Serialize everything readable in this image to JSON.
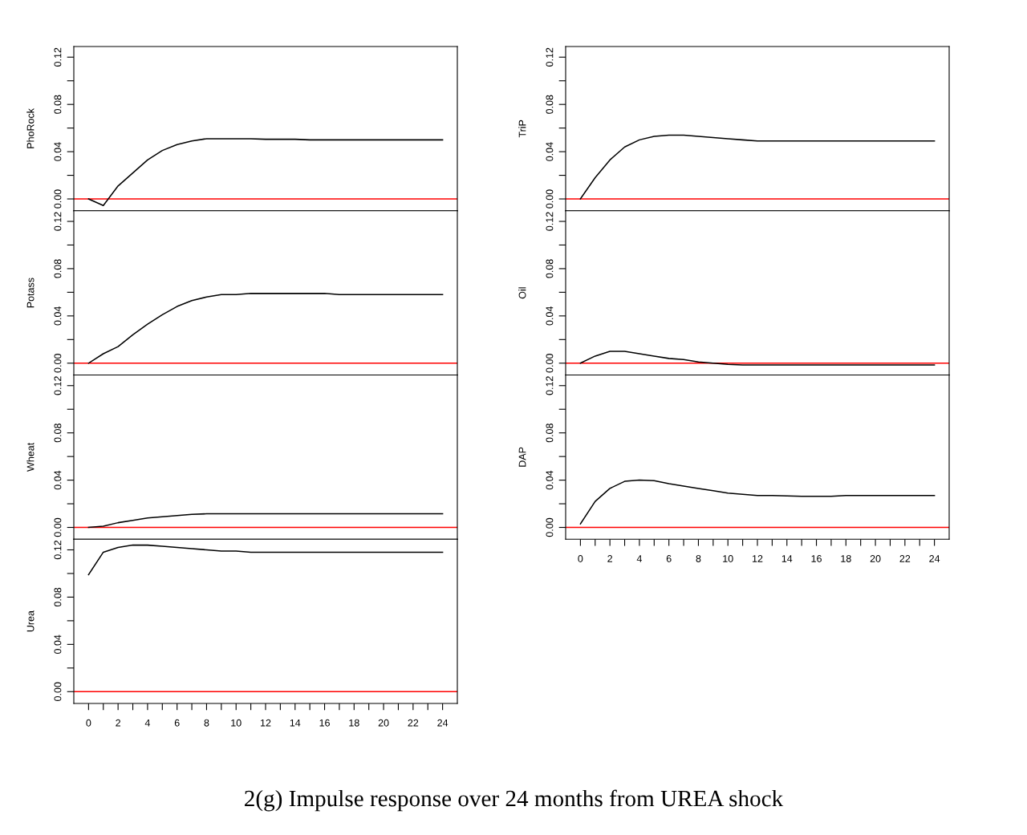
{
  "chart_data": [
    {
      "type": "line",
      "ylabel": "PhoRock",
      "annotations": [
        "2(g) Impulse response over 24 months from UREA shock"
      ],
      "xlim": [
        -1,
        25
      ],
      "ylim": [
        -0.01,
        0.129
      ],
      "yticks": [
        {
          "value": 0,
          "label": "0.00"
        },
        {
          "value": 0.02,
          "label": null
        },
        0.04,
        {
          "value": 0.06,
          "label": null
        },
        0.08,
        {
          "value": 0.1,
          "label": null
        },
        0.12
      ],
      "tick_labels": "y",
      "ref_lines": [
        {
          "axis": "y",
          "value": 0,
          "color": "#ff0000"
        }
      ],
      "series": [
        {
          "color": "#000000",
          "x": [
            0,
            1,
            2,
            3,
            4,
            5,
            6,
            7,
            8,
            9,
            10,
            11,
            12,
            13,
            14,
            15,
            16,
            17,
            18,
            19,
            20,
            21,
            22,
            23,
            24
          ],
          "values": [
            0,
            -0.0056,
            0.011,
            0.022,
            0.033,
            0.041,
            0.046,
            0.049,
            0.051,
            0.051,
            0.051,
            0.051,
            0.0505,
            0.0505,
            0.0505,
            0.05,
            0.05,
            0.05,
            0.05,
            0.05,
            0.05,
            0.05,
            0.05,
            0.05,
            0.05
          ]
        }
      ]
    },
    {
      "type": "line",
      "ylabel": "Potass",
      "xlim": [
        -1,
        25
      ],
      "ylim": [
        -0.01,
        0.129
      ],
      "yticks": [
        {
          "value": 0,
          "label": "0.00"
        },
        {
          "value": 0.02,
          "label": null
        },
        0.04,
        {
          "value": 0.06,
          "label": null
        },
        0.08,
        {
          "value": 0.1,
          "label": null
        },
        0.12
      ],
      "tick_labels": "y",
      "ref_lines": [
        {
          "axis": "y",
          "value": 0,
          "color": "#ff0000"
        }
      ],
      "series": [
        {
          "color": "#000000",
          "x": [
            0,
            1,
            2,
            3,
            4,
            5,
            6,
            7,
            8,
            9,
            10,
            11,
            12,
            13,
            14,
            15,
            16,
            17,
            18,
            19,
            20,
            21,
            22,
            23,
            24
          ],
          "values": [
            0,
            0.008,
            0.014,
            0.024,
            0.033,
            0.041,
            0.048,
            0.053,
            0.056,
            0.058,
            0.058,
            0.059,
            0.059,
            0.059,
            0.059,
            0.059,
            0.059,
            0.058,
            0.058,
            0.058,
            0.058,
            0.058,
            0.058,
            0.058,
            0.058
          ]
        }
      ]
    },
    {
      "type": "line",
      "ylabel": "Wheat",
      "xlim": [
        -1,
        25
      ],
      "ylim": [
        -0.01,
        0.129
      ],
      "yticks": [
        {
          "value": 0,
          "label": "0.00"
        },
        {
          "value": 0.02,
          "label": null
        },
        0.04,
        {
          "value": 0.06,
          "label": null
        },
        0.08,
        {
          "value": 0.1,
          "label": null
        },
        0.12
      ],
      "tick_labels": "y",
      "ref_lines": [
        {
          "axis": "y",
          "value": 0,
          "color": "#ff0000"
        }
      ],
      "series": [
        {
          "color": "#000000",
          "x": [
            0,
            1,
            2,
            3,
            4,
            5,
            6,
            7,
            8,
            9,
            10,
            11,
            12,
            13,
            14,
            15,
            16,
            17,
            18,
            19,
            20,
            21,
            22,
            23,
            24
          ],
          "values": [
            0,
            0.001,
            0.004,
            0.006,
            0.008,
            0.009,
            0.01,
            0.011,
            0.0115,
            0.0115,
            0.0115,
            0.0115,
            0.0115,
            0.0115,
            0.0115,
            0.0115,
            0.0115,
            0.0115,
            0.0115,
            0.0115,
            0.0115,
            0.0115,
            0.0115,
            0.0115,
            0.0115
          ]
        }
      ]
    },
    {
      "type": "line",
      "ylabel": "Urea",
      "xlim": [
        -1,
        25
      ],
      "ylim": [
        -0.01,
        0.129
      ],
      "yticks": [
        {
          "value": 0,
          "label": "0.00"
        },
        {
          "value": 0.02,
          "label": null
        },
        0.04,
        {
          "value": 0.06,
          "label": null
        },
        0.08,
        {
          "value": 0.1,
          "label": null
        },
        0.12
      ],
      "xticks": [
        0,
        {
          "value": 1,
          "label": null
        },
        2,
        {
          "value": 3,
          "label": null
        },
        4,
        {
          "value": 5,
          "label": null
        },
        6,
        {
          "value": 7,
          "label": null
        },
        8,
        {
          "value": 9,
          "label": null
        },
        10,
        {
          "value": 11,
          "label": null
        },
        12,
        {
          "value": 13,
          "label": null
        },
        14,
        {
          "value": 15,
          "label": null
        },
        16,
        {
          "value": 17,
          "label": null
        },
        18,
        {
          "value": 19,
          "label": null
        },
        20,
        {
          "value": 21,
          "label": null
        },
        22,
        {
          "value": 23,
          "label": null
        },
        24
      ],
      "ref_lines": [
        {
          "axis": "y",
          "value": 0,
          "color": "#ff0000"
        }
      ],
      "series": [
        {
          "color": "#000000",
          "x": [
            0,
            1,
            2,
            3,
            4,
            5,
            6,
            7,
            8,
            9,
            10,
            11,
            12,
            13,
            14,
            15,
            16,
            17,
            18,
            19,
            20,
            21,
            22,
            23,
            24
          ],
          "values": [
            0.099,
            0.118,
            0.122,
            0.124,
            0.124,
            0.123,
            0.122,
            0.121,
            0.12,
            0.119,
            0.119,
            0.118,
            0.118,
            0.118,
            0.118,
            0.118,
            0.118,
            0.118,
            0.118,
            0.118,
            0.118,
            0.118,
            0.118,
            0.118,
            0.118
          ]
        }
      ]
    },
    {
      "type": "line",
      "ylabel": "TriP",
      "xlim": [
        -1,
        25
      ],
      "ylim": [
        -0.01,
        0.129
      ],
      "yticks": [
        {
          "value": 0,
          "label": "0.00"
        },
        {
          "value": 0.02,
          "label": null
        },
        0.04,
        {
          "value": 0.06,
          "label": null
        },
        0.08,
        {
          "value": 0.1,
          "label": null
        },
        0.12
      ],
      "tick_labels": "y",
      "ref_lines": [
        {
          "axis": "y",
          "value": 0,
          "color": "#ff0000"
        }
      ],
      "series": [
        {
          "color": "#000000",
          "x": [
            0,
            1,
            2,
            3,
            4,
            5,
            6,
            7,
            8,
            9,
            10,
            11,
            12,
            13,
            14,
            15,
            16,
            17,
            18,
            19,
            20,
            21,
            22,
            23,
            24
          ],
          "values": [
            0,
            0.018,
            0.033,
            0.044,
            0.05,
            0.053,
            0.054,
            0.054,
            0.053,
            0.052,
            0.051,
            0.05,
            0.049,
            0.049,
            0.049,
            0.049,
            0.049,
            0.049,
            0.049,
            0.049,
            0.049,
            0.049,
            0.049,
            0.049,
            0.049
          ]
        }
      ]
    },
    {
      "type": "line",
      "ylabel": "Oil",
      "xlim": [
        -1,
        25
      ],
      "ylim": [
        -0.01,
        0.129
      ],
      "yticks": [
        {
          "value": 0,
          "label": "0.00"
        },
        {
          "value": 0.02,
          "label": null
        },
        0.04,
        {
          "value": 0.06,
          "label": null
        },
        0.08,
        {
          "value": 0.1,
          "label": null
        },
        0.12
      ],
      "tick_labels": "y",
      "ref_lines": [
        {
          "axis": "y",
          "value": 0,
          "color": "#ff0000"
        }
      ],
      "series": [
        {
          "color": "#000000",
          "x": [
            0,
            1,
            2,
            3,
            4,
            5,
            6,
            7,
            8,
            9,
            10,
            11,
            12,
            13,
            14,
            15,
            16,
            17,
            18,
            19,
            20,
            21,
            22,
            23,
            24
          ],
          "values": [
            0,
            0.006,
            0.01,
            0.01,
            0.008,
            0.006,
            0.004,
            0.003,
            0.001,
            0.0,
            -0.001,
            -0.0015,
            -0.0015,
            -0.0015,
            -0.0015,
            -0.0015,
            -0.0015,
            -0.0015,
            -0.0015,
            -0.0015,
            -0.0015,
            -0.0015,
            -0.0015,
            -0.0015,
            -0.0015
          ]
        }
      ]
    },
    {
      "type": "line",
      "ylabel": "DAP",
      "xlim": [
        -1,
        25
      ],
      "ylim": [
        -0.01,
        0.129
      ],
      "yticks": [
        {
          "value": 0,
          "label": "0.00"
        },
        {
          "value": 0.02,
          "label": null
        },
        0.04,
        {
          "value": 0.06,
          "label": null
        },
        0.08,
        {
          "value": 0.1,
          "label": null
        },
        0.12
      ],
      "xticks": [
        0,
        {
          "value": 1,
          "label": null
        },
        2,
        {
          "value": 3,
          "label": null
        },
        4,
        {
          "value": 5,
          "label": null
        },
        6,
        {
          "value": 7,
          "label": null
        },
        8,
        {
          "value": 9,
          "label": null
        },
        10,
        {
          "value": 11,
          "label": null
        },
        12,
        {
          "value": 13,
          "label": null
        },
        14,
        {
          "value": 15,
          "label": null
        },
        16,
        {
          "value": 17,
          "label": null
        },
        18,
        {
          "value": 19,
          "label": null
        },
        20,
        {
          "value": 21,
          "label": null
        },
        22,
        {
          "value": 23,
          "label": null
        },
        24
      ],
      "ref_lines": [
        {
          "axis": "y",
          "value": 0,
          "color": "#ff0000"
        }
      ],
      "series": [
        {
          "color": "#000000",
          "x": [
            0,
            1,
            2,
            3,
            4,
            5,
            6,
            7,
            8,
            9,
            10,
            11,
            12,
            13,
            14,
            15,
            16,
            17,
            18,
            19,
            20,
            21,
            22,
            23,
            24
          ],
          "values": [
            0.003,
            0.022,
            0.033,
            0.039,
            0.04,
            0.0395,
            0.037,
            0.035,
            0.033,
            0.031,
            0.029,
            0.028,
            0.027,
            0.027,
            0.0266,
            0.0263,
            0.0263,
            0.0263,
            0.027,
            0.027,
            0.027,
            0.027,
            0.027,
            0.027,
            0.027
          ]
        }
      ]
    }
  ]
}
